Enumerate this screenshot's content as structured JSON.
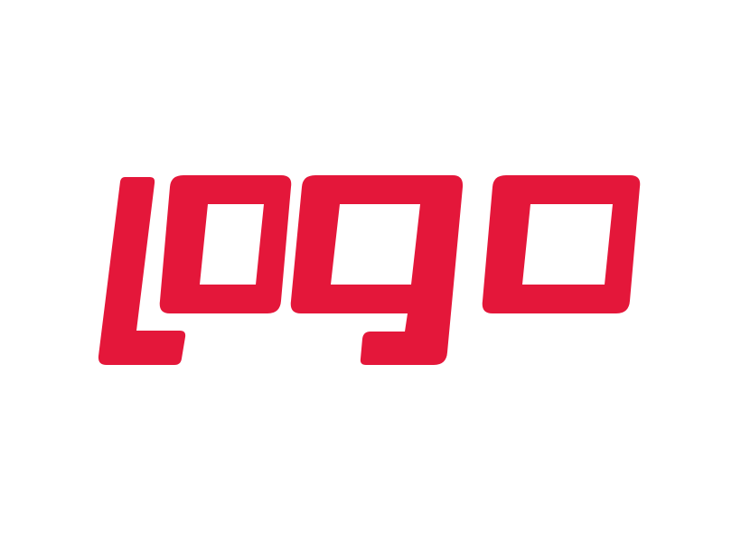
{
  "logo": {
    "wordmark": "logo",
    "color": "#e4173a",
    "background": "#ffffff"
  }
}
